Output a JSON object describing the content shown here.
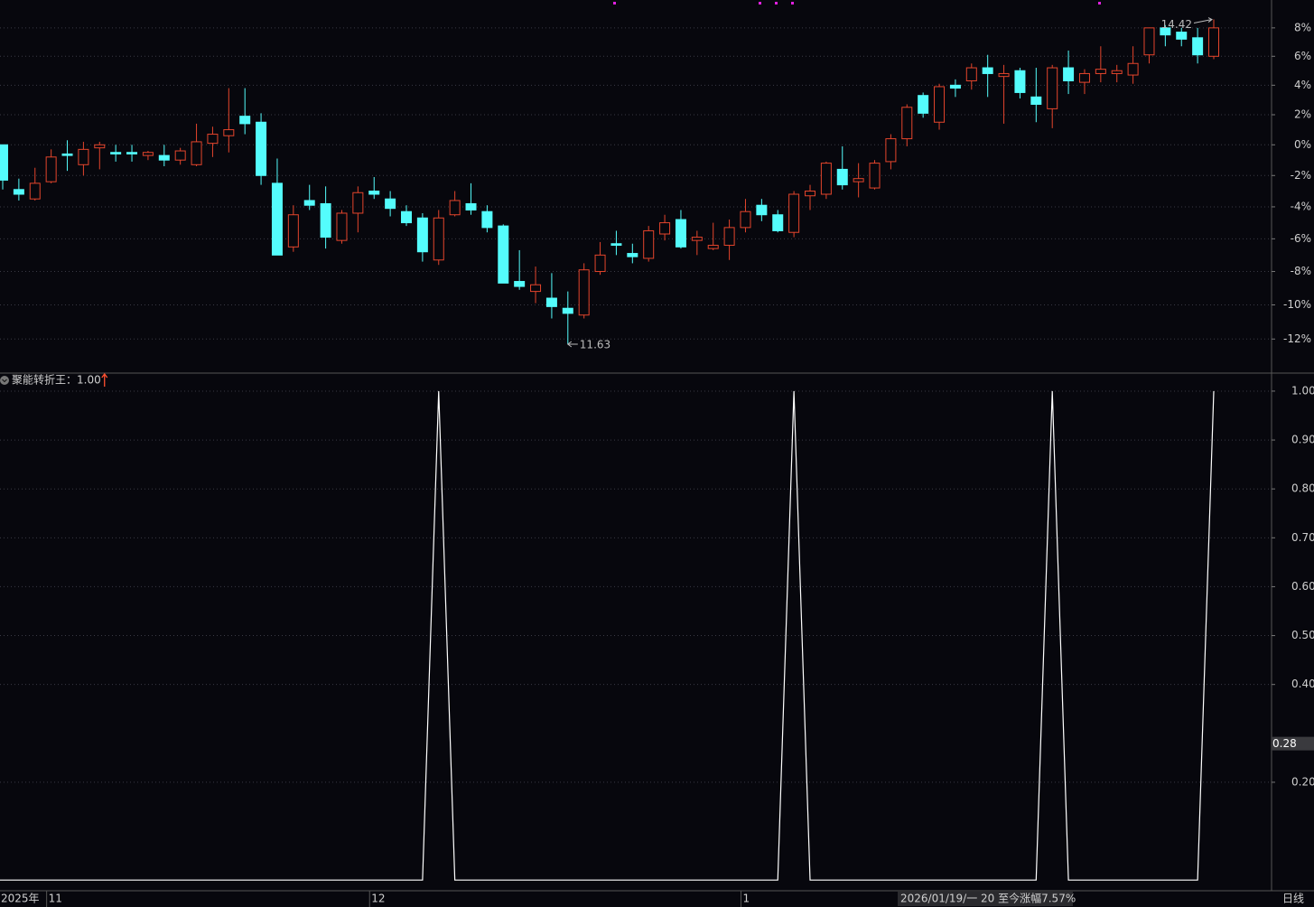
{
  "chart_data": [
    {
      "type": "candlestick",
      "categories": [
        "2025年",
        null,
        null,
        "11",
        null,
        null,
        null,
        null,
        null,
        null,
        null,
        null,
        null,
        null,
        null,
        null,
        null,
        null,
        null,
        null,
        null,
        null,
        null,
        "12",
        null,
        null,
        null,
        null,
        null,
        null,
        null,
        null,
        null,
        null,
        null,
        null,
        null,
        null,
        null,
        null,
        null,
        null,
        null,
        null,
        null,
        null,
        "1",
        null,
        null,
        null,
        null,
        null,
        null,
        null,
        null,
        null,
        null,
        null,
        null,
        null,
        null,
        null,
        null,
        null,
        null,
        null,
        null,
        null,
        null,
        null,
        null,
        null,
        null,
        null,
        null,
        null
      ],
      "open": [
        0,
        -2.9,
        -3.5,
        -2.4,
        -0.6,
        -1.3,
        -0.2,
        -0.5,
        -0.5,
        -0.7,
        -0.7,
        -1.0,
        -1.3,
        0.1,
        0.6,
        1.9,
        1.5,
        -2.5,
        -6.5,
        -3.6,
        -3.8,
        -6.1,
        -4.4,
        -3.0,
        -3.5,
        -4.3,
        -4.7,
        -7.3,
        -4.5,
        -3.8,
        -4.3,
        -5.2,
        -8.6,
        -9.2,
        -9.6,
        -10.2,
        -10.6,
        -8.0,
        -6.3,
        -6.9,
        -7.2,
        -5.7,
        -4.8,
        -6.1,
        -6.6,
        -6.4,
        -5.3,
        -3.9,
        -4.5,
        -5.6,
        -3.3,
        -3.2,
        -1.6,
        -2.4,
        -2.8,
        -1.1,
        0.4,
        3.3,
        1.5,
        4.0,
        4.3,
        5.2,
        4.6,
        5.0,
        3.2,
        2.4,
        5.2,
        4.2,
        4.8,
        4.8,
        4.7,
        6.1,
        8.0,
        7.7,
        7.3,
        6.0
      ],
      "high": [
        0,
        -2.2,
        -1.5,
        -0.3,
        0.3,
        0.2,
        0.2,
        0,
        0,
        -0.4,
        0,
        -0.2,
        1.4,
        1.2,
        3.8,
        3.8,
        2.1,
        -0.9,
        -3.9,
        -2.6,
        -2.7,
        -4.2,
        -2.7,
        -2.1,
        -3.0,
        -3.9,
        -4.4,
        -4.2,
        -3.0,
        -2.5,
        -3.9,
        -5.1,
        -6.7,
        -7.7,
        -8.1,
        -9.2,
        -7.5,
        -6.2,
        -5.5,
        -6.3,
        -5.2,
        -4.5,
        -4.2,
        -5.5,
        -5.0,
        -4.8,
        -3.5,
        -3.5,
        -4.2,
        -3.0,
        -2.6,
        -1.1,
        -0.1,
        -1.2,
        -1.0,
        0.7,
        2.7,
        3.5,
        4.1,
        4.4,
        5.5,
        6.1,
        5.4,
        5.2,
        5.2,
        5.4,
        6.4,
        5.1,
        6.7,
        5.4,
        6.7,
        8.0,
        8.2,
        8.0,
        8.0,
        8.6
      ],
      "low": [
        -2.9,
        -3.6,
        -3.6,
        -2.5,
        -1.7,
        -2.0,
        -1.6,
        -1.1,
        -1.1,
        -1.0,
        -1.4,
        -1.3,
        -1.4,
        -0.8,
        -0.5,
        0.7,
        -2.6,
        -7.0,
        -6.8,
        -4.2,
        -6.6,
        -6.3,
        -5.6,
        -3.5,
        -4.6,
        -5.2,
        -7.4,
        -7.6,
        -4.6,
        -4.5,
        -5.6,
        -8.7,
        -9.1,
        -9.9,
        -10.8,
        -12.3,
        -10.8,
        -8.2,
        -7.0,
        -7.5,
        -7.4,
        -6.1,
        -6.6,
        -7.0,
        -6.7,
        -7.3,
        -5.6,
        -4.9,
        -5.6,
        -5.9,
        -4.2,
        -3.5,
        -2.9,
        -3.4,
        -2.9,
        -1.6,
        -0.1,
        1.8,
        1.0,
        3.2,
        3.7,
        3.2,
        1.4,
        3.1,
        1.5,
        1.1,
        3.4,
        3.4,
        4.2,
        4.2,
        4.1,
        5.5,
        6.7,
        6.7,
        5.5,
        5.8
      ],
      "close": [
        -2.3,
        -3.2,
        -2.5,
        -0.8,
        -0.7,
        -0.3,
        0.0,
        -0.6,
        -0.6,
        -0.5,
        -1.0,
        -0.4,
        0.2,
        0.7,
        1.0,
        1.4,
        -2.0,
        -7.0,
        -4.5,
        -3.9,
        -5.9,
        -4.4,
        -3.1,
        -3.2,
        -4.1,
        -5.0,
        -6.8,
        -4.7,
        -3.6,
        -4.2,
        -5.3,
        -8.7,
        -8.9,
        -8.8,
        -10.1,
        -10.5,
        -7.9,
        -7.0,
        -6.4,
        -7.1,
        -5.5,
        -5.0,
        -6.5,
        -5.9,
        -6.4,
        -5.3,
        -4.3,
        -4.5,
        -5.5,
        -3.2,
        -3.0,
        -1.2,
        -2.6,
        -2.2,
        -1.2,
        0.4,
        2.5,
        2.1,
        3.9,
        3.8,
        5.2,
        4.8,
        4.8,
        3.5,
        2.7,
        5.2,
        4.3,
        4.8,
        5.1,
        5.0,
        5.5,
        8.0,
        7.5,
        7.2,
        6.1,
        8.0
      ],
      "up_color": "#e4452c",
      "down_color": "#54fcfc",
      "log_scale": true,
      "grid": true,
      "ylim": [
        -13.9,
        10.0
      ],
      "yticks": [
        {
          "value": 8,
          "label": "8%"
        },
        {
          "value": 6,
          "label": "6%"
        },
        {
          "value": 4,
          "label": "4%"
        },
        {
          "value": 2,
          "label": "2%"
        },
        {
          "value": 0,
          "label": "0%"
        },
        {
          "value": -2,
          "label": "-2%"
        },
        {
          "value": -4,
          "label": "-4%"
        },
        {
          "value": -6,
          "label": "-6%"
        },
        {
          "value": -8,
          "label": "-8%"
        },
        {
          "value": -10,
          "label": "-10%"
        },
        {
          "value": -12,
          "label": "-12%"
        }
      ],
      "high_label": "14.42",
      "low_label": "11.63"
    },
    {
      "type": "line",
      "title": "聚能转折王：1.00",
      "values": [
        0,
        0,
        0,
        0,
        0,
        0,
        0,
        0,
        0,
        0,
        0,
        0,
        0,
        0,
        0,
        0,
        0,
        0,
        0,
        0,
        0,
        0,
        0,
        0,
        0,
        0,
        0,
        1,
        0,
        0,
        0,
        0,
        0,
        0,
        0,
        0,
        0,
        0,
        0,
        0,
        0,
        0,
        0,
        0,
        0,
        0,
        0,
        0,
        0,
        1,
        0,
        0,
        0,
        0,
        0,
        0,
        0,
        0,
        0,
        0,
        0,
        0,
        0,
        0,
        0,
        1,
        0,
        0,
        0,
        0,
        0,
        0,
        0,
        0,
        0,
        1
      ],
      "color": "#ffffff",
      "grid": true,
      "ylim": [
        -0.02,
        1.035
      ],
      "yticks": [
        {
          "value": 1,
          "label": "1.00"
        },
        {
          "value": 0.9,
          "label": "0.90"
        },
        {
          "value": 0.8,
          "label": "0.80"
        },
        {
          "value": 0.7,
          "label": "0.70"
        },
        {
          "value": 0.6,
          "label": "0.60"
        },
        {
          "value": 0.5,
          "label": "0.50"
        },
        {
          "value": 0.4,
          "label": "0.40"
        },
        {
          "value": 0.2,
          "label": "0.20"
        }
      ],
      "cursor_value": 0.28
    }
  ],
  "status_bar": {
    "text": "2026/01/19/一 20 至今涨幅7.57%",
    "period": "日线"
  }
}
